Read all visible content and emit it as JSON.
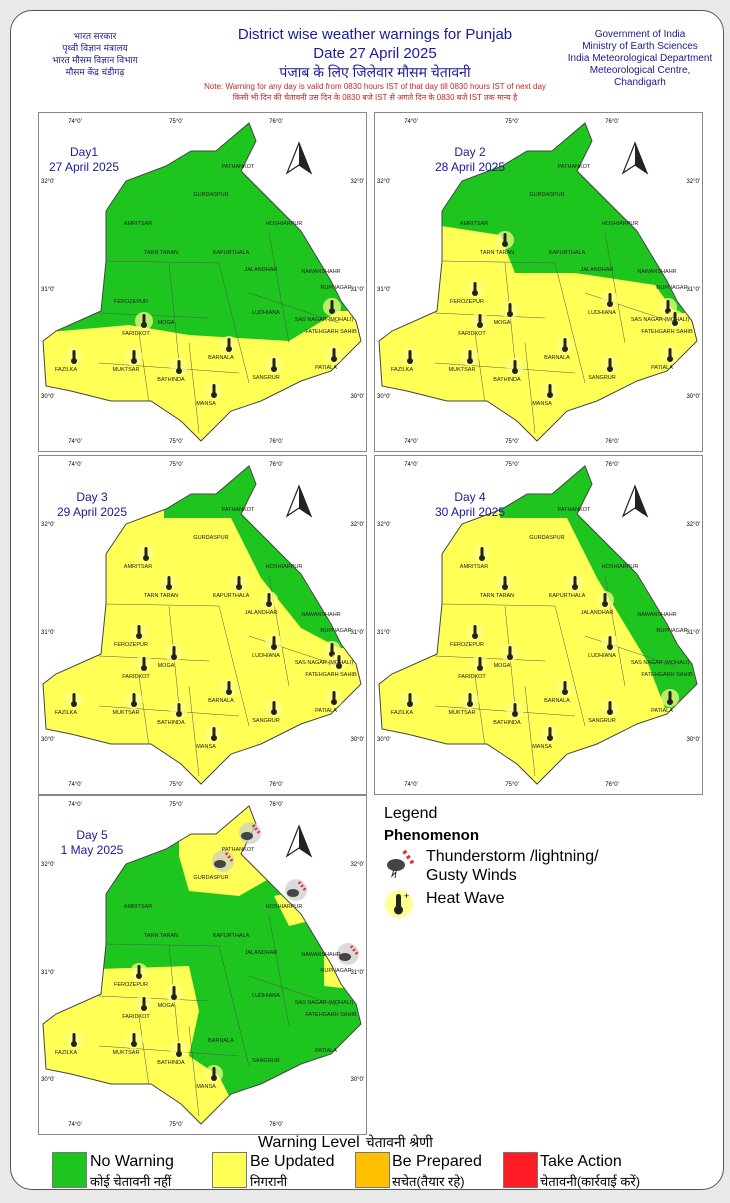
{
  "header": {
    "left_lines": [
      "भारत सरकार",
      "पृथ्वी विज्ञान मंत्रालय",
      "भारत मौसम विज्ञान विभाग",
      "मौसम केंद्र चंडीगढ़"
    ],
    "title": "District wise weather warnings for Punjab",
    "date": "Date 27 April 2025",
    "title_hindi": "पंजाब के लिए जिलेवार मौसम चेतावनी",
    "note": "Note: Warning for any day is valid from 0830 hours IST of that day till 0830 hours IST of next day",
    "note_hindi": "किसी भी दिन की चेतावनी उस दिन के 0830 बजे IST से अगले दिन के 0830 बजे IST तक मान्य है",
    "right_lines": [
      "Government of India",
      "Ministry of Earth Sciences",
      "India Meteorological Department",
      "Meteorological Centre,",
      "Chandigarh"
    ]
  },
  "colors": {
    "no_warning": "#1ec51e",
    "be_updated": "#ffff55",
    "be_prepared": "#ffc000",
    "take_action": "#ff1c24"
  },
  "graticule": {
    "lon": [
      "74°0'",
      "75°0'",
      "76°0'"
    ],
    "lat": [
      "32°0'",
      "31°0'",
      "30°0'"
    ]
  },
  "districts": [
    "PATHANKOT",
    "GURDASPUR",
    "AMRITSAR",
    "HOSHIARPUR",
    "TARN TARAN",
    "KAPURTHALA",
    "JALANDHAR",
    "NAWANSHAHR",
    "RUPNAGAR",
    "FEROZEPUR",
    "MOGA",
    "LUDHIANA",
    "SAS NAGAR (MOHALI)",
    "FATEHGARH SAHIB",
    "FARIDKOT",
    "FAZILKA",
    "MUKTSAR",
    "BATHINDA",
    "BARNALA",
    "SANGRUR",
    "PATIALA",
    "MANSA"
  ],
  "days": [
    {
      "label": "Day1",
      "date": "27 April 2025",
      "warning_level": {
        "yellow": [
          "FEROZEPUR",
          "FARIDKOT",
          "FAZILKA",
          "MUKTSAR",
          "BATHINDA",
          "BARNALA",
          "SANGRUR",
          "PATIALA",
          "MANSA",
          "SAS NAGAR (MOHALI)",
          "FATEHGARH SAHIB"
        ]
      },
      "heat_wave": [
        "FARIDKOT",
        "FAZILKA",
        "MUKTSAR",
        "BATHINDA",
        "BARNALA",
        "SANGRUR",
        "PATIALA",
        "SAS NAGAR (MOHALI)",
        "MANSA"
      ],
      "thunderstorm": []
    },
    {
      "label": "Day 2",
      "date": "28 April 2025",
      "warning_level": {
        "green": [
          "PATHANKOT",
          "GURDASPUR",
          "AMRITSAR",
          "HOSHIARPUR",
          "KAPURTHALA",
          "JALANDHAR",
          "NAWANSHAHR",
          "RUPNAGAR"
        ]
      },
      "heat_wave": [
        "TARN TARAN",
        "FEROZEPUR",
        "FARIDKOT",
        "MOGA",
        "LUDHIANA",
        "FAZILKA",
        "MUKTSAR",
        "BATHINDA",
        "BARNALA",
        "SANGRUR",
        "PATIALA",
        "SAS NAGAR (MOHALI)",
        "FATEHGARH SAHIB",
        "MANSA"
      ],
      "thunderstorm": []
    },
    {
      "label": "Day 3",
      "date": "29 April 2025",
      "warning_level": {
        "green": [
          "PATHANKOT",
          "GURDASPUR",
          "HOSHIARPUR",
          "NAWANSHAHR",
          "RUPNAGAR"
        ]
      },
      "heat_wave": [
        "AMRITSAR",
        "TARN TARAN",
        "KAPURTHALA",
        "JALANDHAR",
        "FEROZEPUR",
        "MOGA",
        "LUDHIANA",
        "FARIDKOT",
        "FAZILKA",
        "MUKTSAR",
        "BATHINDA",
        "BARNALA",
        "SANGRUR",
        "PATIALA",
        "SAS NAGAR (MOHALI)",
        "FATEHGARH SAHIB",
        "MANSA"
      ],
      "thunderstorm": []
    },
    {
      "label": "Day 4",
      "date": "30 April 2025",
      "warning_level": {
        "green": [
          "PATHANKOT",
          "GURDASPUR",
          "HOSHIARPUR",
          "NAWANSHAHR",
          "RUPNAGAR",
          "SAS NAGAR (MOHALI)",
          "FATEHGARH SAHIB"
        ]
      },
      "heat_wave": [
        "AMRITSAR",
        "TARN TARAN",
        "KAPURTHALA",
        "JALANDHAR",
        "FEROZEPUR",
        "MOGA",
        "LUDHIANA",
        "FARIDKOT",
        "FAZILKA",
        "MUKTSAR",
        "BATHINDA",
        "BARNALA",
        "SANGRUR",
        "PATIALA",
        "MANSA"
      ],
      "thunderstorm": []
    },
    {
      "label": "Day 5",
      "date": "1 May 2025",
      "warning_level": {
        "yellow": [
          "PATHANKOT",
          "GURDASPUR",
          "HOSHIARPUR",
          "RUPNAGAR",
          "FEROZEPUR",
          "MOGA",
          "FARIDKOT",
          "FAZILKA",
          "MUKTSAR",
          "BATHINDA",
          "MANSA"
        ]
      },
      "heat_wave": [
        "FEROZEPUR",
        "MOGA",
        "FARIDKOT",
        "FAZILKA",
        "MUKTSAR",
        "BATHINDA",
        "MANSA"
      ],
      "thunderstorm": [
        "PATHANKOT",
        "GURDASPUR",
        "HOSHIARPUR",
        "RUPNAGAR"
      ]
    }
  ],
  "legend": {
    "title": "Legend",
    "phenomenon": "Phenomenon",
    "thunderstorm": "Thunderstorm /lightning/ Gusty Winds",
    "heat_wave": "Heat Wave"
  },
  "warning_level": {
    "title": "Warning Level",
    "title_hindi": "चेतावनी श्रेणी",
    "items": [
      {
        "label": "No Warning",
        "hindi": "कोई चेतावनी नहीं",
        "color": "#1ec51e"
      },
      {
        "label": "Be Updated",
        "hindi": "निगरानी",
        "color": "#ffff55"
      },
      {
        "label": "Be Prepared",
        "hindi": "सचेत(तैयार रहे)",
        "color": "#ffc000"
      },
      {
        "label": "Take Action",
        "hindi": "चेतावनी(कार्रवाई करें)",
        "color": "#ff1c24"
      }
    ]
  }
}
